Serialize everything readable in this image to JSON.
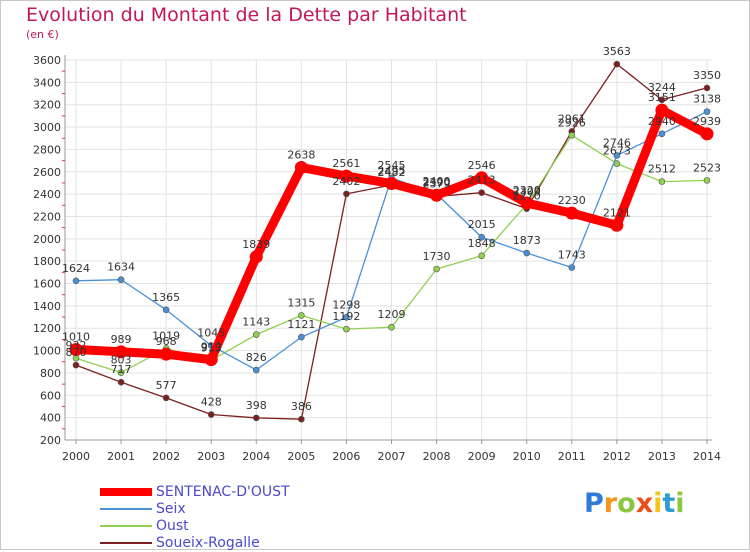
{
  "chart_data": {
    "type": "line",
    "title": "Evolution du Montant de la Dette par Habitant",
    "subtitle": "(en €)",
    "x": [
      "2000",
      "2001",
      "2002",
      "2003",
      "2004",
      "2005",
      "2006",
      "2007",
      "2008",
      "2009",
      "2010",
      "2011",
      "2012",
      "2013",
      "2014"
    ],
    "ylim": [
      200,
      3600
    ],
    "yticks": [
      200,
      400,
      600,
      800,
      1000,
      1200,
      1400,
      1600,
      1800,
      2000,
      2200,
      2400,
      2600,
      2800,
      3000,
      3200,
      3400,
      3600
    ],
    "grid": true,
    "legend_position": "bottom-left",
    "series": [
      {
        "name": "SENTENAC-D'OUST",
        "color": "#ff0000",
        "values": [
          1010,
          989,
          968,
          919,
          1839,
          2638,
          2561,
          2495,
          2390,
          2546,
          2320,
          2230,
          2121,
          3151,
          2939
        ],
        "labels": [
          "1010",
          "989",
          "968",
          "919",
          "1839",
          "2638",
          "2561",
          "2495",
          "2390",
          "2546",
          "2320",
          "2230",
          "2121",
          "3151",
          "2939"
        ]
      },
      {
        "name": "Seix",
        "color": "#4a90d9",
        "values": [
          1624,
          1634,
          1365,
          1045,
          826,
          1121,
          1298,
          2545,
          2400,
          2015,
          1873,
          1743,
          2746,
          2940,
          3138
        ],
        "labels": [
          "1624",
          "1634",
          "1365",
          "1045",
          "826",
          "1121",
          "1298",
          "2545",
          "2400",
          "2015",
          "1873",
          "1743",
          "2746",
          "2940",
          "3138"
        ]
      },
      {
        "name": "Oust",
        "color": "#8fd14f",
        "values": [
          932,
          803,
          1019,
          913,
          1143,
          1315,
          1192,
          1209,
          1730,
          1848,
          2309,
          2926,
          2673,
          2512,
          2523
        ],
        "labels": [
          "932",
          "803",
          "1019",
          "913",
          "1143",
          "1315",
          "1192",
          "1209",
          "1730",
          "1848",
          "2309",
          "2926",
          "2673",
          "2512",
          "2523"
        ]
      },
      {
        "name": "Soueix-Rogalle",
        "color": "#7b1f1f",
        "values": [
          870,
          717,
          577,
          428,
          398,
          386,
          2402,
          2482,
          2379,
          2413,
          2270,
          2961,
          3563,
          3244,
          3350
        ],
        "labels": [
          "870",
          "717",
          "577",
          "428",
          "398",
          "386",
          "2402",
          "2482",
          "2379",
          "2413",
          "2270",
          "2961",
          "3563",
          "3244",
          "3350"
        ]
      }
    ]
  },
  "logo": {
    "letters": [
      "P",
      "r",
      "o",
      "x",
      "i",
      "t",
      "i"
    ],
    "colors": [
      "#2e7bd6",
      "#f7941d",
      "#8cc63f",
      "#e94e1b",
      "#f7c31d",
      "#2e9bd6",
      "#8cc63f"
    ]
  }
}
